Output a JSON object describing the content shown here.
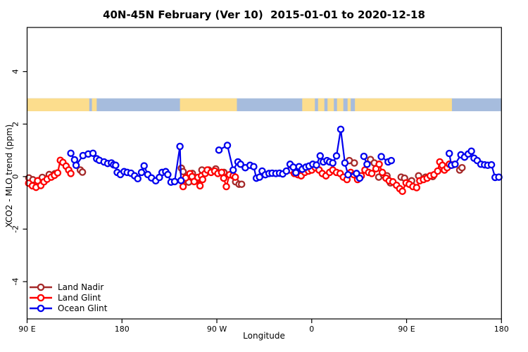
{
  "chart_data": {
    "type": "line",
    "title": "40N-45N February (Ver 10)  2015-01-01 to 2020-12-18",
    "xlabel": "Longitude",
    "ylabel": "XCO2 - MLO trend (ppm)",
    "xlim": [
      90,
      540
    ],
    "ylim": [
      -5.42,
      5.68
    ],
    "grid": false,
    "legend_position": "bottom-left",
    "x_ticks": [
      {
        "v": 90,
        "label": "90 E"
      },
      {
        "v": 180,
        "label": "180"
      },
      {
        "v": 270,
        "label": "90 W"
      },
      {
        "v": 360,
        "label": "0"
      },
      {
        "v": 450,
        "label": "90 E"
      },
      {
        "v": 540,
        "label": "180"
      }
    ],
    "y_ticks": [
      {
        "v": -4,
        "label": "-4"
      },
      {
        "v": -2,
        "label": "-2"
      },
      {
        "v": 0,
        "label": "0"
      },
      {
        "v": 2,
        "label": "2"
      },
      {
        "v": 4,
        "label": "4"
      }
    ],
    "map_band": {
      "y_range": [
        2.49,
        2.98
      ],
      "ocean_color": "#A6BCDD",
      "land_color": "#FCDD8D",
      "ocean_extent": [
        90,
        540
      ],
      "land_segments": [
        [
          90,
          149
        ],
        [
          151.5,
          156
        ],
        [
          235,
          289
        ],
        [
          351,
          363
        ],
        [
          366,
          372
        ],
        [
          375,
          381
        ],
        [
          384,
          390
        ],
        [
          394,
          397
        ],
        [
          401,
          493
        ]
      ]
    },
    "series": [
      {
        "name": "Land Nadir",
        "color": "#A52A2A",
        "segments": [
          [
            [
              91.7,
              -0.05
            ],
            [
              95.5,
              -0.12
            ],
            [
              100.4,
              -0.16
            ],
            [
              104.4,
              -0.03
            ],
            [
              111,
              0.08
            ],
            [
              116.4,
              0.11
            ]
          ],
          [
            [
              140.5,
              0.25
            ],
            [
              142.5,
              0.17
            ]
          ],
          [
            [
              236.4,
              0.32
            ],
            [
              238,
              0.19
            ],
            [
              241.3,
              -0.03
            ],
            [
              243.3,
              -0.21
            ],
            [
              246.8,
              0.12
            ],
            [
              251.3,
              -0.11
            ],
            [
              255.8,
              0.25
            ]
          ],
          [
            [
              262.2,
              0.25
            ],
            [
              268.9,
              0.29
            ],
            [
              276.7,
              0.16
            ]
          ],
          [
            [
              287.8,
              -0.2
            ],
            [
              291.1,
              -0.29
            ],
            [
              293.5,
              -0.29
            ]
          ],
          [
            [
              395.7,
              0.61
            ],
            [
              400.4,
              0.52
            ]
          ],
          [
            [
              415.8,
              0.65
            ],
            [
              419.4,
              0.52
            ]
          ],
          [
            [
              423.6,
              -0.02
            ],
            [
              428,
              0.07
            ],
            [
              431.4,
              0.03
            ],
            [
              434.7,
              -0.24
            ]
          ],
          [
            [
              444.8,
              -0.02
            ],
            [
              448.1,
              -0.06
            ]
          ],
          [
            [
              454.8,
              -0.16
            ]
          ],
          [
            [
              461.4,
              0.03
            ]
          ],
          [
            [
              468.1,
              -0.02
            ],
            [
              474.8,
              0.0
            ]
          ],
          [
            [
              500.4,
              0.25
            ],
            [
              502.6,
              0.34
            ]
          ]
        ]
      },
      {
        "name": "Land Glint",
        "color": "#FF0000",
        "segments": [
          [
            [
              91.5,
              -0.25
            ],
            [
              95,
              -0.35
            ],
            [
              98.5,
              -0.41
            ],
            [
              100,
              -0.16
            ],
            [
              103,
              -0.34
            ],
            [
              106,
              -0.2
            ],
            [
              109,
              -0.1
            ],
            [
              113,
              -0.02
            ],
            [
              116,
              0.05
            ],
            [
              119,
              0.14
            ],
            [
              121.5,
              0.62
            ],
            [
              124,
              0.54
            ],
            [
              127,
              0.4
            ],
            [
              129.5,
              0.25
            ],
            [
              131.5,
              0.12
            ]
          ],
          [
            [
              238,
              -0.38
            ],
            [
              240.5,
              -0.05
            ],
            [
              244.5,
              0.11
            ],
            [
              246.5,
              0.0
            ],
            [
              248.5,
              -0.19
            ],
            [
              252,
              -0.03
            ],
            [
              254,
              -0.35
            ],
            [
              255.5,
              0.03
            ],
            [
              256.5,
              -0.11
            ],
            [
              259,
              0.12
            ],
            [
              261,
              0.25
            ],
            [
              264.5,
              0.16
            ],
            [
              268,
              0.21
            ],
            [
              271,
              0.12
            ],
            [
              274.5,
              0.16
            ],
            [
              276.5,
              -0.06
            ],
            [
              279,
              -0.38
            ],
            [
              282,
              0.07
            ],
            [
              285.5,
              0.03
            ],
            [
              287.5,
              -0.02
            ]
          ],
          [
            [
              340,
              0.25
            ],
            [
              343.5,
              0.12
            ],
            [
              347,
              0.07
            ],
            [
              350,
              0.03
            ],
            [
              353.5,
              0.16
            ],
            [
              357,
              0.21
            ],
            [
              360,
              0.25
            ],
            [
              363.5,
              0.34
            ],
            [
              367,
              0.25
            ],
            [
              370,
              0.12
            ],
            [
              373.5,
              0.03
            ],
            [
              377,
              0.16
            ],
            [
              380,
              0.25
            ],
            [
              383.5,
              0.16
            ],
            [
              387,
              0.12
            ],
            [
              390,
              -0.02
            ],
            [
              393.5,
              -0.11
            ],
            [
              397,
              0.16
            ],
            [
              400,
              0.07
            ],
            [
              403.5,
              -0.11
            ],
            [
              407,
              0.03
            ],
            [
              410.5,
              0.25
            ],
            [
              414,
              0.16
            ],
            [
              417,
              0.12
            ],
            [
              421,
              0.3
            ],
            [
              424,
              0.47
            ],
            [
              427,
              0.16
            ],
            [
              430.5,
              -0.06
            ],
            [
              433.5,
              -0.16
            ],
            [
              437,
              -0.2
            ],
            [
              440.5,
              -0.33
            ],
            [
              443.5,
              -0.46
            ],
            [
              446,
              -0.56
            ],
            [
              449.5,
              -0.24
            ],
            [
              452.5,
              -0.29
            ],
            [
              456,
              -0.38
            ],
            [
              459.5,
              -0.42
            ],
            [
              462.5,
              -0.16
            ],
            [
              466,
              -0.11
            ],
            [
              469.5,
              -0.06
            ],
            [
              472.5,
              0.03
            ],
            [
              476,
              0.07
            ],
            [
              479.5,
              0.21
            ],
            [
              481.5,
              0.56
            ],
            [
              484,
              0.43
            ],
            [
              486,
              0.25
            ],
            [
              488.5,
              0.34
            ],
            [
              490.5,
              0.47
            ],
            [
              494,
              0.45
            ]
          ]
        ]
      },
      {
        "name": "Ocean Glint",
        "color": "#0000EE",
        "segments": [
          [
            [
              131.5,
              0.89
            ],
            [
              135,
              0.64
            ],
            [
              136.5,
              0.43
            ],
            [
              143,
              0.8
            ],
            [
              148,
              0.86
            ],
            [
              152.5,
              0.89
            ],
            [
              156,
              0.68
            ],
            [
              158.5,
              0.62
            ],
            [
              163,
              0.56
            ],
            [
              166.5,
              0.5
            ],
            [
              170,
              0.52
            ],
            [
              172,
              0.45
            ],
            [
              174,
              0.43
            ],
            [
              175.5,
              0.16
            ],
            [
              178.5,
              0.08
            ],
            [
              182,
              0.19
            ],
            [
              185,
              0.16
            ],
            [
              188.5,
              0.13
            ],
            [
              192,
              0.03
            ],
            [
              195,
              -0.08
            ],
            [
              198.5,
              0.16
            ],
            [
              201,
              0.41
            ],
            [
              204.5,
              0.08
            ],
            [
              208,
              -0.05
            ],
            [
              212,
              -0.16
            ],
            [
              215.5,
              -0.03
            ],
            [
              218,
              0.16
            ],
            [
              221.5,
              0.19
            ],
            [
              223.5,
              0.08
            ],
            [
              226.5,
              -0.21
            ],
            [
              230,
              -0.19
            ],
            [
              235,
              1.15
            ],
            [
              236,
              -0.15
            ]
          ],
          [
            [
              272,
              1.01
            ],
            [
              280,
              1.19
            ],
            [
              285.5,
              0.25
            ],
            [
              290,
              0.56
            ],
            [
              292.5,
              0.47
            ],
            [
              297,
              0.34
            ],
            [
              301.5,
              0.43
            ],
            [
              305,
              0.38
            ],
            [
              307.5,
              -0.06
            ],
            [
              310.5,
              -0.02
            ],
            [
              313,
              0.21
            ],
            [
              316,
              0.07
            ],
            [
              319.5,
              0.12
            ],
            [
              322.5,
              0.13
            ],
            [
              326,
              0.12
            ],
            [
              329.5,
              0.13
            ],
            [
              332.5,
              0.1
            ],
            [
              336,
              0.21
            ],
            [
              339.5,
              0.47
            ],
            [
              342.5,
              0.36
            ],
            [
              345,
              0.15
            ],
            [
              348,
              0.38
            ],
            [
              351,
              0.28
            ],
            [
              354.5,
              0.36
            ],
            [
              357.5,
              0.4
            ],
            [
              361,
              0.47
            ],
            [
              364.5,
              0.44
            ],
            [
              368,
              0.79
            ],
            [
              371,
              0.56
            ],
            [
              374.5,
              0.61
            ],
            [
              377,
              0.56
            ],
            [
              380,
              0.52
            ],
            [
              383.5,
              0.79
            ],
            [
              387.5,
              1.8
            ],
            [
              391.5,
              0.52
            ],
            [
              394.5,
              0.07
            ],
            [
              402.5,
              0.12
            ],
            [
              405.5,
              -0.06
            ]
          ],
          [
            [
              409.5,
              0.77
            ],
            [
              412.5,
              0.47
            ]
          ],
          [
            [
              426,
              0.76
            ],
            [
              432.5,
              0.56
            ],
            [
              435.5,
              0.61
            ]
          ],
          [
            [
              490.5,
              0.88
            ],
            [
              492.5,
              0.43
            ],
            [
              496,
              0.47
            ],
            [
              501.5,
              0.83
            ],
            [
              505,
              0.74
            ],
            [
              508.5,
              0.86
            ],
            [
              511.5,
              0.97
            ],
            [
              514,
              0.7
            ],
            [
              517,
              0.61
            ],
            [
              520.5,
              0.47
            ],
            [
              524,
              0.45
            ],
            [
              527,
              0.43
            ],
            [
              530.5,
              0.45
            ],
            [
              534,
              -0.03
            ],
            [
              537.5,
              -0.02
            ]
          ]
        ]
      }
    ]
  }
}
